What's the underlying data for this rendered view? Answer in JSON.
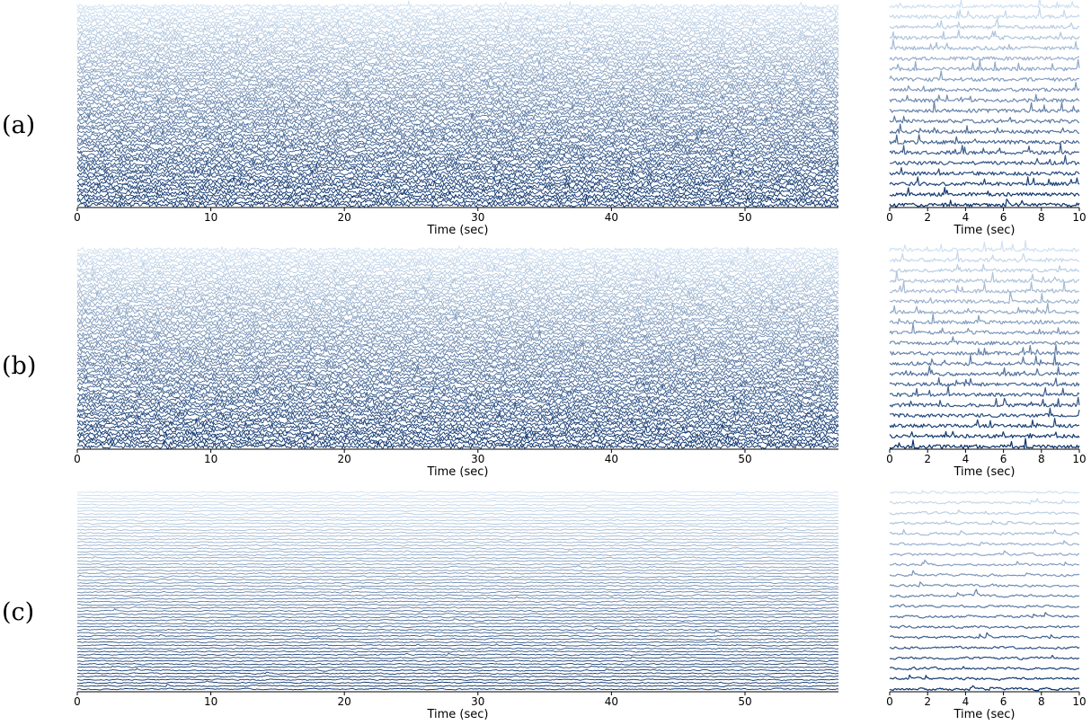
{
  "chart_data": [
    {
      "type": "line",
      "panel": "(a)",
      "view": "full",
      "xlabel": "Time (sec)",
      "xlim": [
        0,
        57
      ],
      "xticks": [
        0,
        10,
        20,
        30,
        40,
        50
      ],
      "n_traces": 64,
      "colormap": "Blues",
      "noise": 2.2,
      "spikes": 0.01,
      "smooth": 0.0
    },
    {
      "type": "line",
      "panel": "(a)",
      "view": "zoom",
      "xlabel": "Time (sec)",
      "xlim": [
        0,
        10
      ],
      "xticks": [
        0,
        2,
        4,
        6,
        8,
        10
      ],
      "n_traces": 20,
      "colormap": "Blues",
      "noise": 2.0,
      "spikes": 0.03,
      "smooth": 0.0
    },
    {
      "type": "line",
      "panel": "(b)",
      "view": "full",
      "xlabel": "Time (sec)",
      "xlim": [
        0,
        57
      ],
      "xticks": [
        0,
        10,
        20,
        30,
        40,
        50
      ],
      "n_traces": 64,
      "colormap": "Blues",
      "noise": 2.2,
      "spikes": 0.01,
      "smooth": 0.0
    },
    {
      "type": "line",
      "panel": "(b)",
      "view": "zoom",
      "xlabel": "Time (sec)",
      "xlim": [
        0,
        10
      ],
      "xticks": [
        0,
        2,
        4,
        6,
        8,
        10
      ],
      "n_traces": 20,
      "colormap": "Blues",
      "noise": 2.0,
      "spikes": 0.03,
      "smooth": 0.0
    },
    {
      "type": "line",
      "panel": "(c)",
      "view": "full",
      "xlabel": "Time (sec)",
      "xlim": [
        0,
        57
      ],
      "xticks": [
        0,
        10,
        20,
        30,
        40,
        50
      ],
      "n_traces": 64,
      "colormap": "Blues",
      "noise": 1.6,
      "spikes": 0.002,
      "smooth": 0.7
    },
    {
      "type": "line",
      "panel": "(c)",
      "view": "zoom",
      "xlabel": "Time (sec)",
      "xlim": [
        0,
        10
      ],
      "xticks": [
        0,
        2,
        4,
        6,
        8,
        10
      ],
      "n_traces": 20,
      "colormap": "Blues",
      "noise": 2.2,
      "spikes": 0.01,
      "smooth": 0.5
    }
  ]
}
